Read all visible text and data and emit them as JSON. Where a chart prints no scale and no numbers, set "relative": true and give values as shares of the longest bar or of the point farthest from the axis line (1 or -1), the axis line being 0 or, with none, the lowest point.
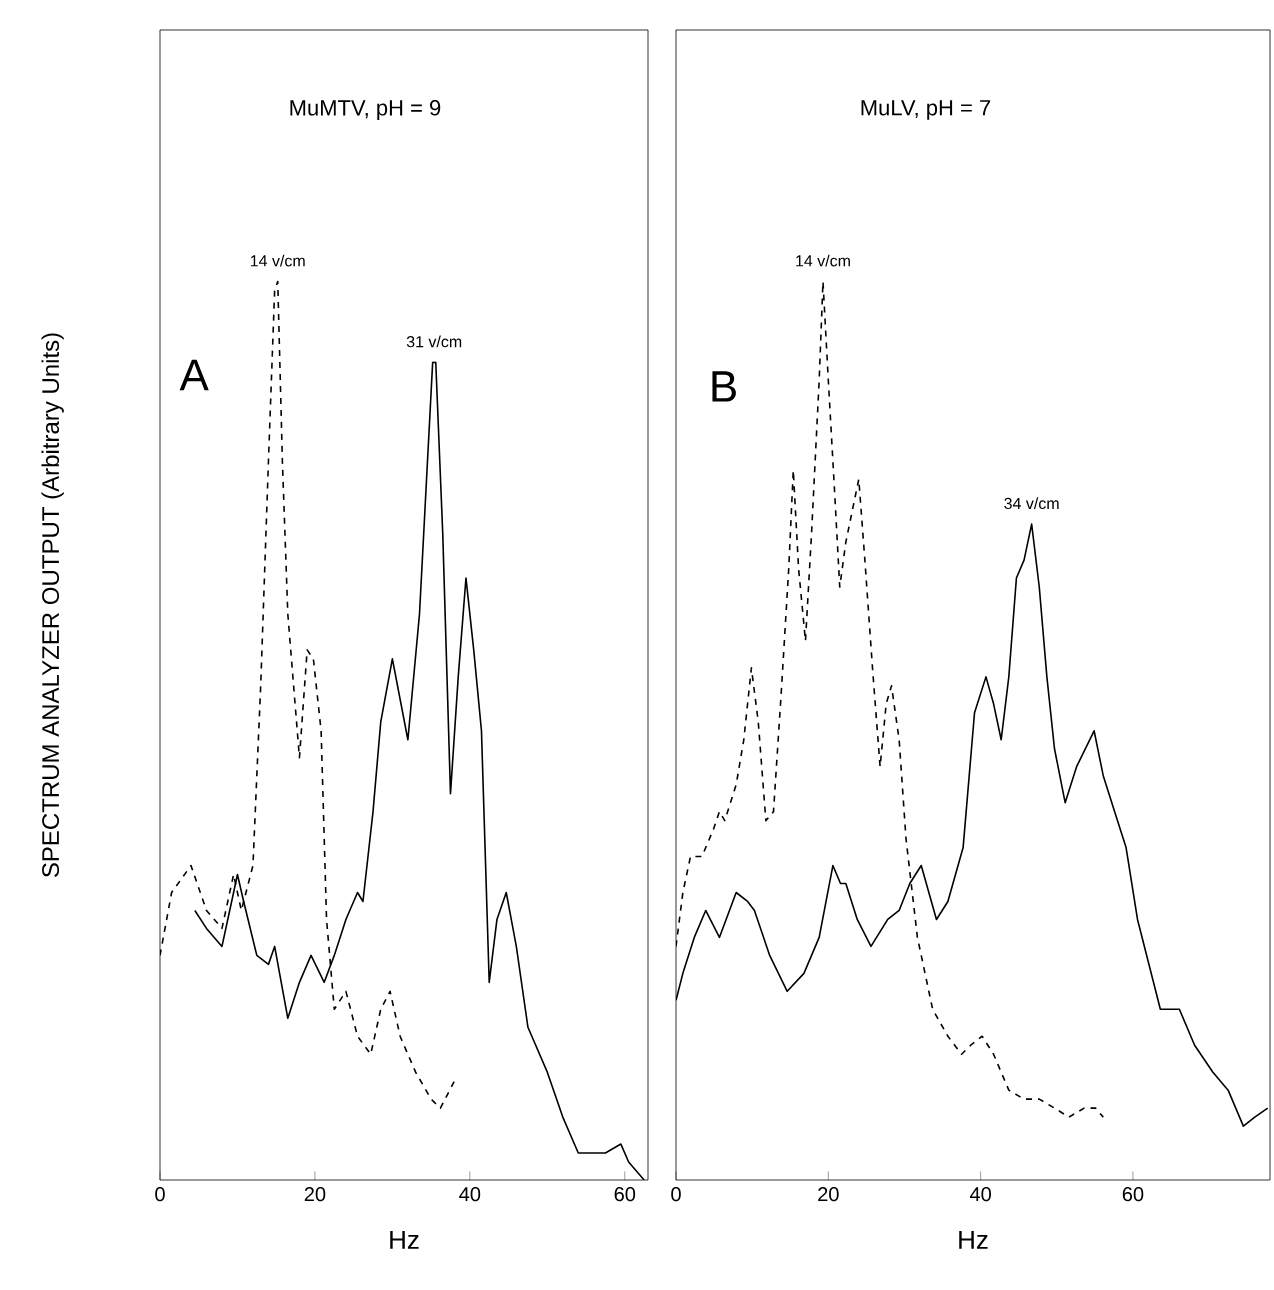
{
  "chart_data": [
    {
      "type": "line",
      "title": "MuMTV, pH = 9",
      "xlabel": "Hz",
      "ylabel": "SPECTRUM ANALYZER OUTPUT (Arbitrary Units)",
      "relative": true,
      "xlim": [
        0,
        63
      ],
      "xticks": [
        0,
        20,
        40,
        60
      ],
      "annotations": [
        "A",
        {
          "text": "14 v/cm",
          "x": 15.2,
          "y": 1.0
        },
        {
          "text": "31 v/cm",
          "x": 35.4,
          "y": 0.91
        }
      ],
      "series": [
        {
          "color": "#000000",
          "line_style": "dashed",
          "x": [
            0,
            1.5,
            4,
            6,
            8,
            9.5,
            10.5,
            12,
            13,
            14,
            14.8,
            15.2,
            15.8,
            16.5,
            18,
            19,
            19.8,
            20.8,
            21.5,
            22.5,
            24,
            25.5,
            27.2,
            28.5,
            29.7,
            31,
            33,
            35,
            36.2,
            38
          ],
          "values": [
            0.25,
            0.32,
            0.35,
            0.3,
            0.28,
            0.34,
            0.3,
            0.35,
            0.55,
            0.8,
            0.99,
            1.0,
            0.8,
            0.63,
            0.47,
            0.59,
            0.58,
            0.5,
            0.29,
            0.19,
            0.21,
            0.16,
            0.14,
            0.19,
            0.21,
            0.16,
            0.12,
            0.09,
            0.08,
            0.11
          ]
        },
        {
          "color": "#000000",
          "line_style": "solid",
          "x": [
            4.5,
            6,
            8,
            9.5,
            10,
            10.8,
            12.5,
            14,
            14.8,
            16.5,
            18,
            19.5,
            21.2,
            22.5,
            24,
            25.5,
            26.2,
            27.5,
            28.5,
            30,
            32,
            33.5,
            35.2,
            35.6,
            36.5,
            37.5,
            38.5,
            39.5,
            40.5,
            41.5,
            42.5,
            43.5,
            44.7,
            46,
            47.5,
            50,
            52,
            54,
            56,
            57.5,
            59.5,
            60.5,
            61.5,
            62.5
          ],
          "values": [
            0.3,
            0.28,
            0.26,
            0.32,
            0.34,
            0.31,
            0.25,
            0.24,
            0.26,
            0.18,
            0.22,
            0.25,
            0.22,
            0.25,
            0.29,
            0.32,
            0.31,
            0.41,
            0.51,
            0.58,
            0.49,
            0.63,
            0.91,
            0.91,
            0.72,
            0.43,
            0.56,
            0.67,
            0.59,
            0.5,
            0.22,
            0.29,
            0.32,
            0.26,
            0.17,
            0.12,
            0.07,
            0.03,
            0.03,
            0.03,
            0.04,
            0.02,
            0.01,
            0.0
          ]
        }
      ]
    },
    {
      "type": "line",
      "title": "MuLV, pH = 7",
      "xlabel": "Hz",
      "relative": true,
      "xlim": [
        0,
        78
      ],
      "xticks": [
        0,
        20,
        40,
        60
      ],
      "annotations": [
        "B",
        {
          "text": "14 v/cm",
          "x": 19.3,
          "y": 1.0
        },
        {
          "text": "34 v/cm",
          "x": 46.7,
          "y": 0.73
        }
      ],
      "series": [
        {
          "color": "#000000",
          "line_style": "dashed",
          "x": [
            0,
            0.9,
            1.9,
            3.4,
            4.9,
            5.7,
            6.4,
            7.9,
            8.9,
            9.9,
            10.8,
            11.8,
            12.8,
            13.8,
            14.8,
            15.4,
            16.1,
            17,
            17.8,
            18.8,
            19.3,
            20,
            20.8,
            21.5,
            22.3,
            24,
            24.8,
            25.8,
            26.8,
            27.6,
            28.3,
            29.3,
            30.2,
            31.7,
            33.7,
            35.7,
            37.5,
            38.7,
            40.2,
            41.7,
            43.7,
            45.7,
            47.7,
            49.7,
            51.6,
            53.6,
            55.1,
            56.1
          ],
          "values": [
            0.26,
            0.32,
            0.36,
            0.36,
            0.39,
            0.41,
            0.4,
            0.44,
            0.49,
            0.57,
            0.51,
            0.4,
            0.41,
            0.54,
            0.68,
            0.79,
            0.68,
            0.6,
            0.72,
            0.89,
            1.0,
            0.89,
            0.77,
            0.66,
            0.71,
            0.78,
            0.69,
            0.57,
            0.46,
            0.53,
            0.55,
            0.49,
            0.38,
            0.27,
            0.19,
            0.16,
            0.14,
            0.15,
            0.16,
            0.14,
            0.1,
            0.09,
            0.09,
            0.08,
            0.07,
            0.08,
            0.08,
            0.07
          ]
        },
        {
          "color": "#000000",
          "line_style": "solid",
          "x": [
            0,
            0.9,
            2.4,
            3.9,
            5.7,
            7.9,
            9.4,
            10.3,
            12.3,
            14.6,
            16.8,
            18.8,
            20.6,
            21.6,
            22.3,
            23.8,
            25.6,
            27.8,
            29.3,
            30.7,
            32.2,
            33.2,
            34.2,
            35.7,
            37.7,
            39.2,
            40.7,
            41.7,
            42.7,
            43.7,
            44.7,
            45.7,
            46.7,
            47.7,
            48.7,
            49.7,
            51.1,
            52.6,
            54.9,
            56.1,
            57.6,
            59.1,
            60.6,
            63.6,
            66.1,
            68.1,
            70.5,
            72.5,
            74.5,
            76,
            77.7
          ],
          "values": [
            0.2,
            0.23,
            0.27,
            0.3,
            0.27,
            0.32,
            0.31,
            0.3,
            0.25,
            0.21,
            0.23,
            0.27,
            0.35,
            0.33,
            0.33,
            0.29,
            0.26,
            0.29,
            0.3,
            0.33,
            0.35,
            0.32,
            0.29,
            0.31,
            0.37,
            0.52,
            0.56,
            0.53,
            0.49,
            0.56,
            0.67,
            0.69,
            0.73,
            0.66,
            0.56,
            0.48,
            0.42,
            0.46,
            0.5,
            0.45,
            0.41,
            0.37,
            0.29,
            0.19,
            0.19,
            0.15,
            0.12,
            0.1,
            0.06,
            0.07,
            0.08
          ]
        }
      ]
    }
  ]
}
